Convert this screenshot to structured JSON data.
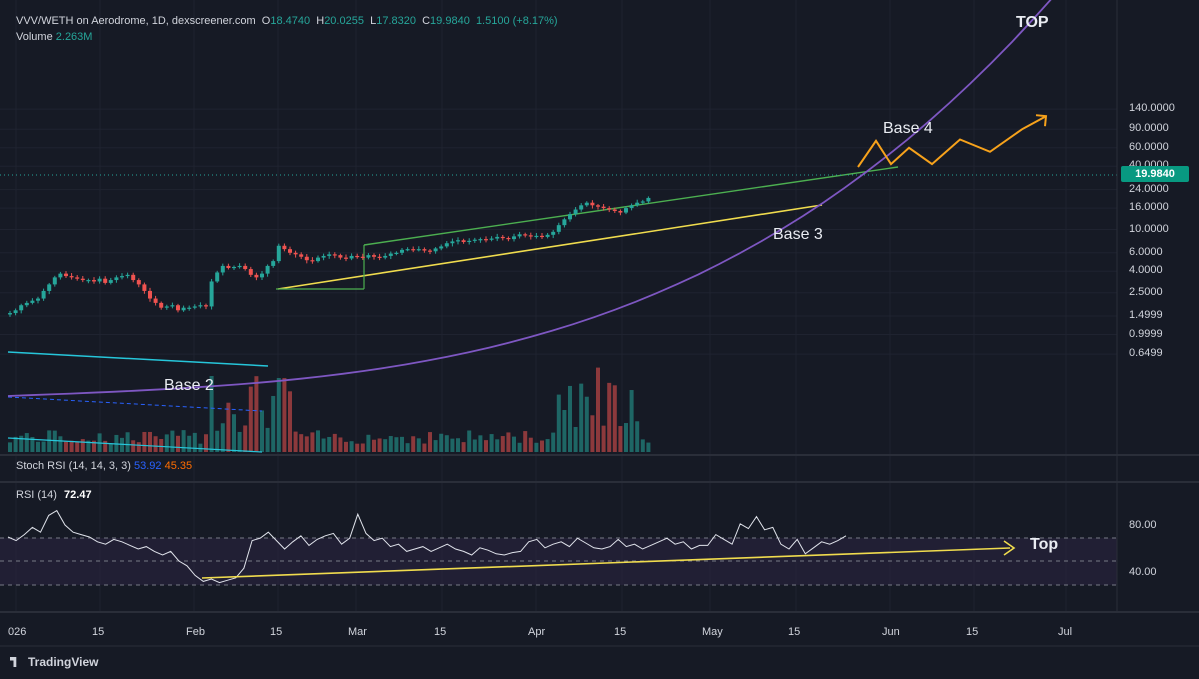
{
  "header": {
    "symbol": "VVV/WETH on Aerodrome, 1D, dexscreener.com",
    "open_label": "O",
    "open": "18.4740",
    "high_label": "H",
    "high": "20.0255",
    "low_label": "L",
    "low": "17.8320",
    "close_label": "C",
    "close": "19.9840",
    "change": "1.5100 (+8.17%)",
    "volume_label": "Volume",
    "volume": "2.263M"
  },
  "current_price": "19.9840",
  "stoch_rsi": {
    "label": "Stoch RSI (14, 14, 3, 3)",
    "k": "53.92",
    "d": "45.35"
  },
  "rsi": {
    "label": "RSI (14)",
    "value": "72.47",
    "ticks": [
      "80.00",
      "40.00"
    ]
  },
  "annotations": {
    "base2": "Base 2",
    "base3": "Base 3",
    "base4": "Base 4",
    "top_price": "TOP",
    "top_rsi": "Top"
  },
  "footer": {
    "brand": "TradingView"
  },
  "colors": {
    "up": "#26a69a",
    "down": "#ef5350",
    "projection": "#f7a21b",
    "trend_yellow": "#f0dc4e",
    "channel_green": "#4caf50",
    "curve_purple": "#7e57c2",
    "support_blue": "#26c6da"
  },
  "chart_data": {
    "type": "candlestick",
    "y_scale": "log",
    "y_ticks": [
      "140.0000",
      "90.0000",
      "60.0000",
      "40.0000",
      "24.0000",
      "16.0000",
      "10.0000",
      "6.0000",
      "4.0000",
      "2.5000",
      "1.4999",
      "0.9999",
      "0.6499"
    ],
    "x_ticks": [
      "026",
      "15",
      "Feb",
      "15",
      "Mar",
      "15",
      "Apr",
      "15",
      "May",
      "15",
      "Jun",
      "15",
      "Jul"
    ],
    "x_range": [
      "2026-01-01",
      "2026-07-13"
    ],
    "closes": [
      1.6,
      1.7,
      1.9,
      2.0,
      2.1,
      2.2,
      2.6,
      3.0,
      3.5,
      3.8,
      3.6,
      3.5,
      3.4,
      3.3,
      3.3,
      3.2,
      3.4,
      3.1,
      3.3,
      3.5,
      3.6,
      3.7,
      3.3,
      3.0,
      2.6,
      2.2,
      2.0,
      1.8,
      1.85,
      1.9,
      1.7,
      1.8,
      1.8,
      1.85,
      1.9,
      1.85,
      3.2,
      3.9,
      4.5,
      4.3,
      4.4,
      4.5,
      4.2,
      3.7,
      3.5,
      3.8,
      4.5,
      5.0,
      7.0,
      6.5,
      6.0,
      5.8,
      5.5,
      5.1,
      5.0,
      5.4,
      5.6,
      5.8,
      5.7,
      5.4,
      5.3,
      5.6,
      5.5,
      5.4,
      5.7,
      5.5,
      5.4,
      5.6,
      5.9,
      6.0,
      6.4,
      6.5,
      6.4,
      6.5,
      6.3,
      6.2,
      6.6,
      6.9,
      7.4,
      7.7,
      7.9,
      7.6,
      7.8,
      8.0,
      8.1,
      8.0,
      8.2,
      8.5,
      8.3,
      8.1,
      8.6,
      9.0,
      8.8,
      8.6,
      8.7,
      8.5,
      8.9,
      9.5,
      11.0,
      12.5,
      14.0,
      15.5,
      17.0,
      18.0,
      17.0,
      16.5,
      16.0,
      15.5,
      15.0,
      14.5,
      16.0,
      17.0,
      18.0,
      18.5,
      19.98
    ],
    "rsi_values": [
      70,
      67,
      72,
      78,
      74,
      88,
      92,
      80,
      74,
      72,
      70,
      66,
      64,
      68,
      66,
      63,
      60,
      62,
      58,
      55,
      58,
      50,
      46,
      38,
      33,
      35,
      32,
      34,
      36,
      44,
      67,
      69,
      74,
      67,
      60,
      66,
      71,
      63,
      68,
      71,
      73,
      64,
      69,
      89,
      73,
      67,
      69,
      62,
      64,
      58,
      60,
      62,
      58,
      61,
      64,
      60,
      58,
      55,
      61,
      59,
      56,
      55,
      57,
      58,
      66,
      68,
      61,
      64,
      66,
      62,
      69,
      65,
      61,
      60,
      62,
      68,
      62,
      64,
      60,
      63,
      66,
      69,
      64,
      66,
      60,
      63,
      63,
      72,
      68,
      64,
      81,
      77,
      87,
      76,
      78,
      64,
      60,
      68,
      56,
      61,
      66,
      64,
      67,
      71
    ],
    "volume_bars": "relative heights only, colored by candle direction",
    "projection_points": [
      24,
      70,
      42,
      60,
      42,
      72,
      55,
      90,
      120
    ],
    "trend_lines": [
      "Base 2 support",
      "Base 3 rising support",
      "upper channel",
      "parabolic curve"
    ]
  }
}
